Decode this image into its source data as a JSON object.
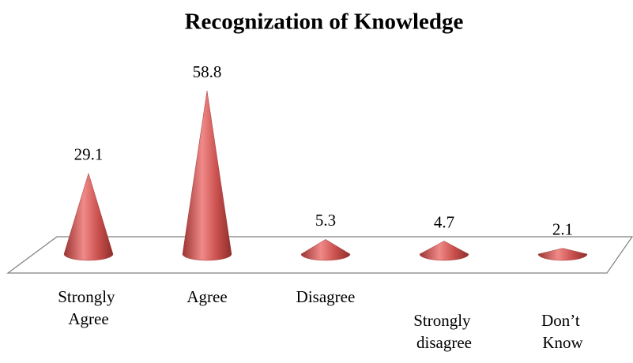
{
  "chart_data": {
    "type": "cone",
    "title": "Recognization of Knowledge",
    "categories": [
      "Strongly Agree",
      "Agree",
      "Disagree",
      "Strongly disagree",
      "Don’t Know"
    ],
    "values": [
      29.1,
      58.8,
      5.3,
      4.7,
      2.1
    ],
    "color": "#c0504d"
  }
}
